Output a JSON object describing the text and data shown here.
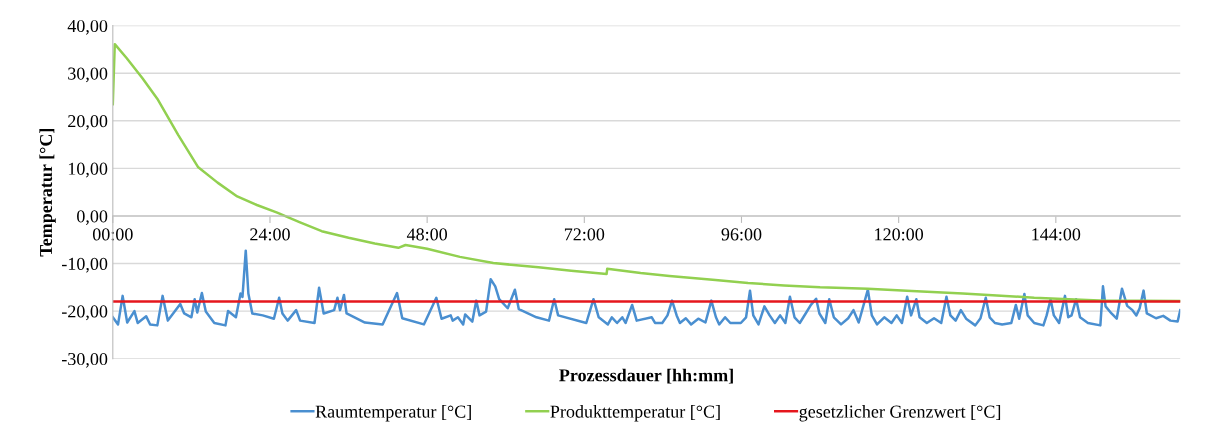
{
  "chart_data": {
    "type": "line",
    "xlabel": "Prozessdauer [hh:mm]",
    "ylabel": "Temperatur [°C]",
    "xlim": [
      0,
      163
    ],
    "ylim": [
      -30,
      40
    ],
    "xticks": [
      {
        "value": 0,
        "label": "00:00"
      },
      {
        "value": 24,
        "label": "24:00"
      },
      {
        "value": 48,
        "label": "48:00"
      },
      {
        "value": 72,
        "label": "72:00"
      },
      {
        "value": 96,
        "label": "96:00"
      },
      {
        "value": 120,
        "label": "120:00"
      },
      {
        "value": 144,
        "label": "144:00"
      }
    ],
    "yticks": [
      {
        "value": -30,
        "label": "-30,00"
      },
      {
        "value": -20,
        "label": "-20,00"
      },
      {
        "value": -10,
        "label": "-10,00"
      },
      {
        "value": 0,
        "label": "0,00"
      },
      {
        "value": 10,
        "label": "10,00"
      },
      {
        "value": 20,
        "label": "20,00"
      },
      {
        "value": 30,
        "label": "30,00"
      },
      {
        "value": 40,
        "label": "40,00"
      }
    ],
    "grid": "y",
    "legend": "bottom",
    "series": [
      {
        "name": "Raumtemperatur [°C]",
        "color": "#4a8fd0",
        "x": [
          0,
          0.8,
          1.5,
          2.2,
          3.3,
          3.8,
          5.1,
          5.7,
          6.8,
          7.6,
          8.4,
          9.5,
          10.3,
          10.9,
          12.0,
          12.5,
          12.9,
          13.6,
          14.2,
          15.5,
          17.2,
          17.6,
          18.8,
          19.5,
          19.8,
          20.3,
          20.7,
          21.3,
          22.9,
          24.6,
          25.4,
          25.9,
          26.7,
          28.0,
          28.6,
          30.8,
          31.5,
          32.2,
          33.8,
          34.3,
          34.7,
          35.3,
          35.7,
          38.5,
          41.2,
          43.4,
          44.2,
          47.5,
          49.4,
          50.2,
          51.6,
          51.9,
          52.7,
          53.5,
          53.8,
          54.9,
          55.5,
          56.0,
          57.0,
          57.7,
          58.4,
          59.0,
          60.3,
          61.4,
          62.0,
          64.7,
          66.6,
          67.4,
          68.0,
          72.3,
          73.4,
          74.2,
          75.6,
          76.2,
          77.0,
          77.8,
          78.3,
          79.3,
          80.0,
          82.3,
          82.8,
          83.9,
          84.7,
          85.4,
          86.1,
          86.6,
          87.5,
          88.3,
          89.4,
          90.5,
          91.4,
          92.1,
          92.6,
          93.5,
          94.3,
          95.9,
          96.7,
          97.3,
          97.8,
          98.6,
          99.5,
          100.3,
          101.1,
          101.9,
          102.7,
          103.4,
          104.1,
          104.9,
          105.8,
          106.6,
          107.4,
          107.9,
          108.8,
          109.4,
          110.1,
          111.2,
          112.3,
          113.1,
          113.9,
          115.3,
          115.9,
          116.7,
          117.8,
          118.9,
          119.7,
          120.5,
          121.3,
          121.9,
          122.7,
          123.2,
          124.3,
          125.4,
          126.5,
          127.3,
          127.9,
          128.7,
          129.5,
          130.3,
          131.7,
          132.5,
          133.3,
          133.9,
          134.7,
          135.8,
          137.2,
          137.9,
          138.4,
          139.2,
          139.7,
          140.7,
          142.1,
          142.6,
          143.2,
          143.7,
          144.5,
          145.4,
          145.9,
          146.4,
          147.1,
          147.7,
          148.9,
          150.8,
          151.2,
          151.6,
          152.5,
          153.3,
          154.1,
          154.9,
          155.7,
          156.3,
          156.8,
          157.4,
          157.9,
          159.3,
          160.4,
          161.5,
          162.6,
          163.0
        ],
        "values": [
          -21.3,
          -22.8,
          -16.8,
          -22.4,
          -20.0,
          -22.5,
          -21.1,
          -22.8,
          -23.0,
          -16.8,
          -22.0,
          -20.0,
          -18.5,
          -20.5,
          -21.3,
          -17.5,
          -20.3,
          -16.2,
          -20.1,
          -22.5,
          -23.0,
          -20.0,
          -21.3,
          -16.3,
          -17.0,
          -7.3,
          -16.3,
          -20.5,
          -20.9,
          -21.6,
          -17.2,
          -20.5,
          -22.0,
          -19.8,
          -22.0,
          -22.5,
          -15.1,
          -20.5,
          -19.8,
          -17.2,
          -19.8,
          -16.6,
          -20.5,
          -22.4,
          -22.8,
          -16.2,
          -21.5,
          -22.8,
          -17.2,
          -21.6,
          -20.9,
          -22.0,
          -21.3,
          -22.8,
          -20.7,
          -22.2,
          -17.8,
          -20.9,
          -20.1,
          -13.3,
          -14.8,
          -17.5,
          -19.4,
          -15.5,
          -19.6,
          -21.3,
          -22.0,
          -17.5,
          -20.9,
          -22.5,
          -17.5,
          -21.3,
          -22.8,
          -21.3,
          -22.5,
          -21.3,
          -22.5,
          -18.7,
          -22.0,
          -21.3,
          -22.5,
          -22.5,
          -20.9,
          -17.8,
          -20.9,
          -22.5,
          -21.5,
          -22.8,
          -21.6,
          -22.4,
          -17.8,
          -21.3,
          -22.8,
          -21.3,
          -22.5,
          -22.5,
          -21.3,
          -15.7,
          -20.9,
          -22.8,
          -19.0,
          -20.9,
          -22.5,
          -20.9,
          -22.5,
          -17.0,
          -21.3,
          -22.5,
          -20.5,
          -18.7,
          -17.4,
          -20.5,
          -22.5,
          -17.5,
          -21.3,
          -22.8,
          -21.5,
          -19.8,
          -22.4,
          -15.5,
          -20.9,
          -22.8,
          -21.3,
          -22.5,
          -20.9,
          -22.5,
          -17.0,
          -20.9,
          -17.5,
          -21.3,
          -22.5,
          -21.5,
          -22.5,
          -17.0,
          -20.9,
          -22.0,
          -19.8,
          -21.6,
          -23.0,
          -21.5,
          -17.2,
          -21.3,
          -22.5,
          -22.8,
          -22.5,
          -18.7,
          -21.6,
          -16.4,
          -20.9,
          -22.5,
          -23.0,
          -20.9,
          -17.5,
          -20.9,
          -22.5,
          -16.8,
          -21.3,
          -20.9,
          -17.5,
          -21.3,
          -22.5,
          -23.0,
          -14.8,
          -19.0,
          -20.5,
          -21.6,
          -15.3,
          -18.9,
          -19.8,
          -20.9,
          -19.4,
          -15.7,
          -20.5,
          -21.5,
          -21.0,
          -22.0,
          -22.2,
          -19.8
        ]
      },
      {
        "name": "Produkttemperatur [°C]",
        "color": "#92d050",
        "x": [
          0,
          0.3,
          2.1,
          4.5,
          6.9,
          10,
          13,
          16,
          19,
          22,
          25.1,
          28.5,
          31.9,
          36,
          40,
          43.6,
          44.7,
          48,
          53,
          58.1,
          65,
          70,
          75.4,
          75.5,
          80.6,
          85,
          91.6,
          97,
          102.5,
          108,
          115.3,
          122,
          129.8,
          135,
          140.7,
          146,
          151.6,
          157,
          163
        ],
        "values": [
          23.5,
          36.1,
          33.2,
          29.0,
          24.4,
          17.0,
          10.3,
          7.0,
          4.1,
          2.3,
          0.7,
          -1.3,
          -3.2,
          -4.6,
          -5.8,
          -6.7,
          -6.1,
          -6.9,
          -8.6,
          -9.9,
          -10.8,
          -11.5,
          -12.2,
          -11.1,
          -12.0,
          -12.6,
          -13.4,
          -14.1,
          -14.6,
          -15.0,
          -15.3,
          -15.8,
          -16.3,
          -16.7,
          -17.2,
          -17.5,
          -17.8,
          -17.8,
          -17.9
        ]
      },
      {
        "name": "gesetzlicher Grenzwert [°C]",
        "color": "#e5161d",
        "x": [
          0,
          163
        ],
        "values": [
          -18,
          -18
        ]
      }
    ]
  }
}
